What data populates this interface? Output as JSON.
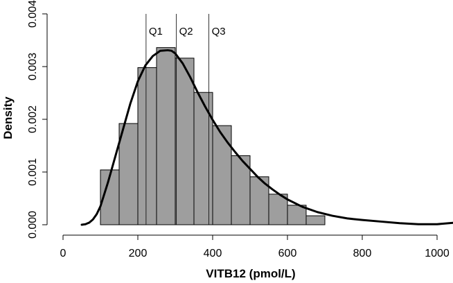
{
  "chart_data": {
    "type": "histogram",
    "xlabel": "VITB12 (pmol/L)",
    "ylabel": "Density",
    "xlim": [
      0,
      1050
    ],
    "ylim": [
      0,
      0.004
    ],
    "x_ticks": [
      0,
      200,
      400,
      600,
      800,
      1000
    ],
    "x_tick_labels": [
      "0",
      "200",
      "400",
      "600",
      "800",
      "1000"
    ],
    "y_ticks": [
      0,
      0.001,
      0.002,
      0.003,
      0.004
    ],
    "y_tick_labels": [
      "0.000",
      "0.001",
      "0.002",
      "0.003",
      "0.004"
    ],
    "bin_width": 50,
    "bins": [
      {
        "start": 100,
        "density": 0.00104
      },
      {
        "start": 150,
        "density": 0.00192
      },
      {
        "start": 200,
        "density": 0.00298
      },
      {
        "start": 250,
        "density": 0.00336
      },
      {
        "start": 300,
        "density": 0.00316
      },
      {
        "start": 350,
        "density": 0.00251
      },
      {
        "start": 400,
        "density": 0.00188
      },
      {
        "start": 450,
        "density": 0.00131
      },
      {
        "start": 500,
        "density": 0.00091
      },
      {
        "start": 550,
        "density": 0.00058
      },
      {
        "start": 600,
        "density": 0.00037
      },
      {
        "start": 650,
        "density": 0.00017
      }
    ],
    "density_curve": {
      "x": [
        50,
        60,
        70,
        80,
        90,
        100,
        120,
        140,
        160,
        180,
        200,
        220,
        240,
        260,
        280,
        290,
        300,
        320,
        340,
        360,
        380,
        400,
        420,
        440,
        460,
        480,
        500,
        520,
        540,
        560,
        580,
        600,
        640,
        680,
        720,
        760,
        800,
        850,
        900,
        950,
        1000,
        1050
      ],
      "y": [
        0.0,
        1e-05,
        4e-05,
        0.0001,
        0.0002,
        0.00035,
        0.0008,
        0.0013,
        0.0018,
        0.0023,
        0.00272,
        0.00302,
        0.0032,
        0.0033,
        0.00331,
        0.0033,
        0.00325,
        0.00306,
        0.0028,
        0.00251,
        0.00224,
        0.00199,
        0.00176,
        0.00156,
        0.00138,
        0.00121,
        0.00106,
        0.00091,
        0.00078,
        0.00067,
        0.00057,
        0.00048,
        0.00034,
        0.00024,
        0.00017,
        0.00012,
        9e-05,
        6e-05,
        3e-05,
        1e-05,
        1e-05,
        4e-05
      ]
    },
    "quartiles": [
      {
        "label": "Q1",
        "x": 222
      },
      {
        "label": "Q2",
        "x": 303
      },
      {
        "label": "Q3",
        "x": 390
      }
    ]
  }
}
